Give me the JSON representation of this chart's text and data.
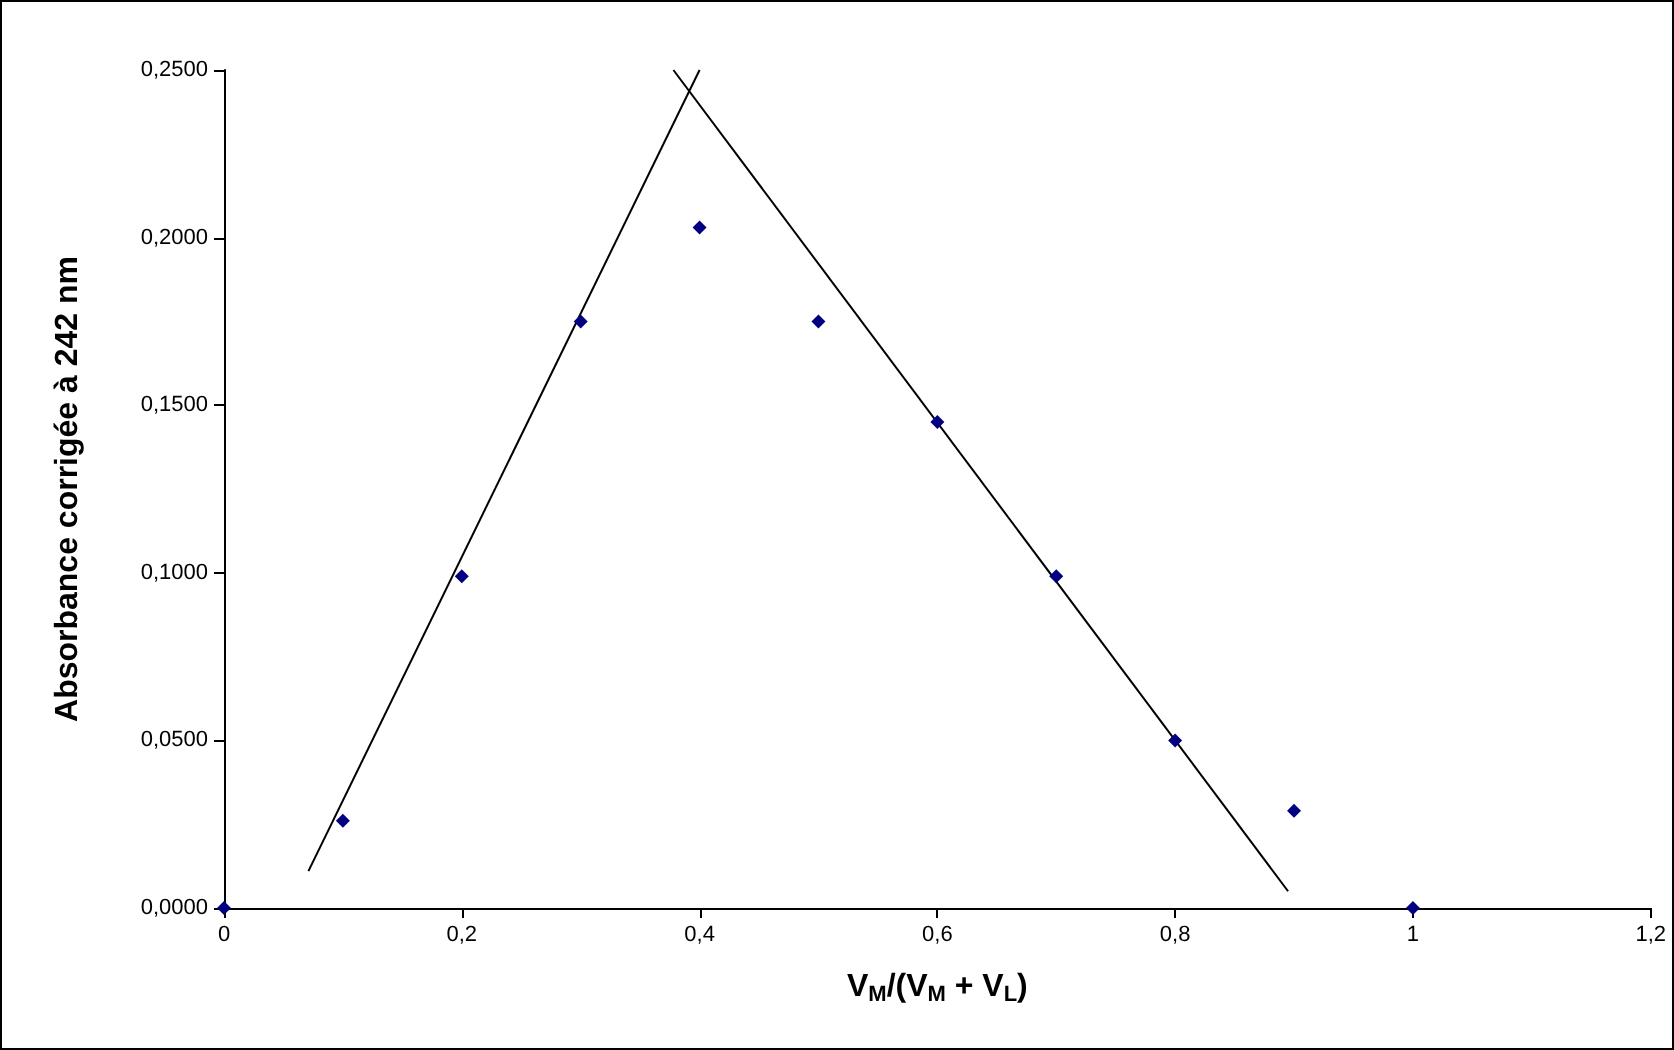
{
  "chart_data": {
    "type": "scatter",
    "xlabel": "V$_{M}$/(V$_{M}$ + V$_{L}$)",
    "ylabel": "Absorbance corrigée à 242 nm",
    "grid": false,
    "xlim": [
      0,
      1.2
    ],
    "xticks": [
      0,
      {
        "value": 0.2,
        "label": "0,2"
      },
      {
        "value": 0.4,
        "label": "0,4"
      },
      {
        "value": 0.6,
        "label": "0,6"
      },
      {
        "value": 0.8,
        "label": "0,8"
      },
      1,
      {
        "value": 1.2,
        "label": "1,2"
      }
    ],
    "ylim": [
      0,
      0.25
    ],
    "yticks": [
      {
        "value": 0,
        "label": "0,0000"
      },
      {
        "value": 0.05,
        "label": "0,0500"
      },
      {
        "value": 0.1,
        "label": "0,1000"
      },
      {
        "value": 0.15,
        "label": "0,1500"
      },
      {
        "value": 0.2,
        "label": "0,2000"
      },
      {
        "value": 0.25,
        "label": "0,2500"
      }
    ],
    "series": [
      {
        "color": "#000080",
        "marker": "diamond",
        "x": [
          0,
          0.1,
          0.2,
          0.3,
          0.4,
          0.5,
          0.6,
          0.7,
          0.8,
          0.9,
          1
        ],
        "values": [
          0,
          0.026,
          0.099,
          0.175,
          0.203,
          0.175,
          0.145,
          0.099,
          0.05,
          0.029,
          0
        ]
      },
      {
        "type": "line",
        "marker": "none",
        "color": "#000000",
        "x": [
          0.071,
          0.4
        ],
        "values": [
          0.011,
          0.25
        ]
      },
      {
        "type": "line",
        "marker": "none",
        "color": "#000000",
        "x": [
          0.378,
          0.895
        ],
        "values": [
          0.25,
          0.005
        ]
      }
    ]
  }
}
